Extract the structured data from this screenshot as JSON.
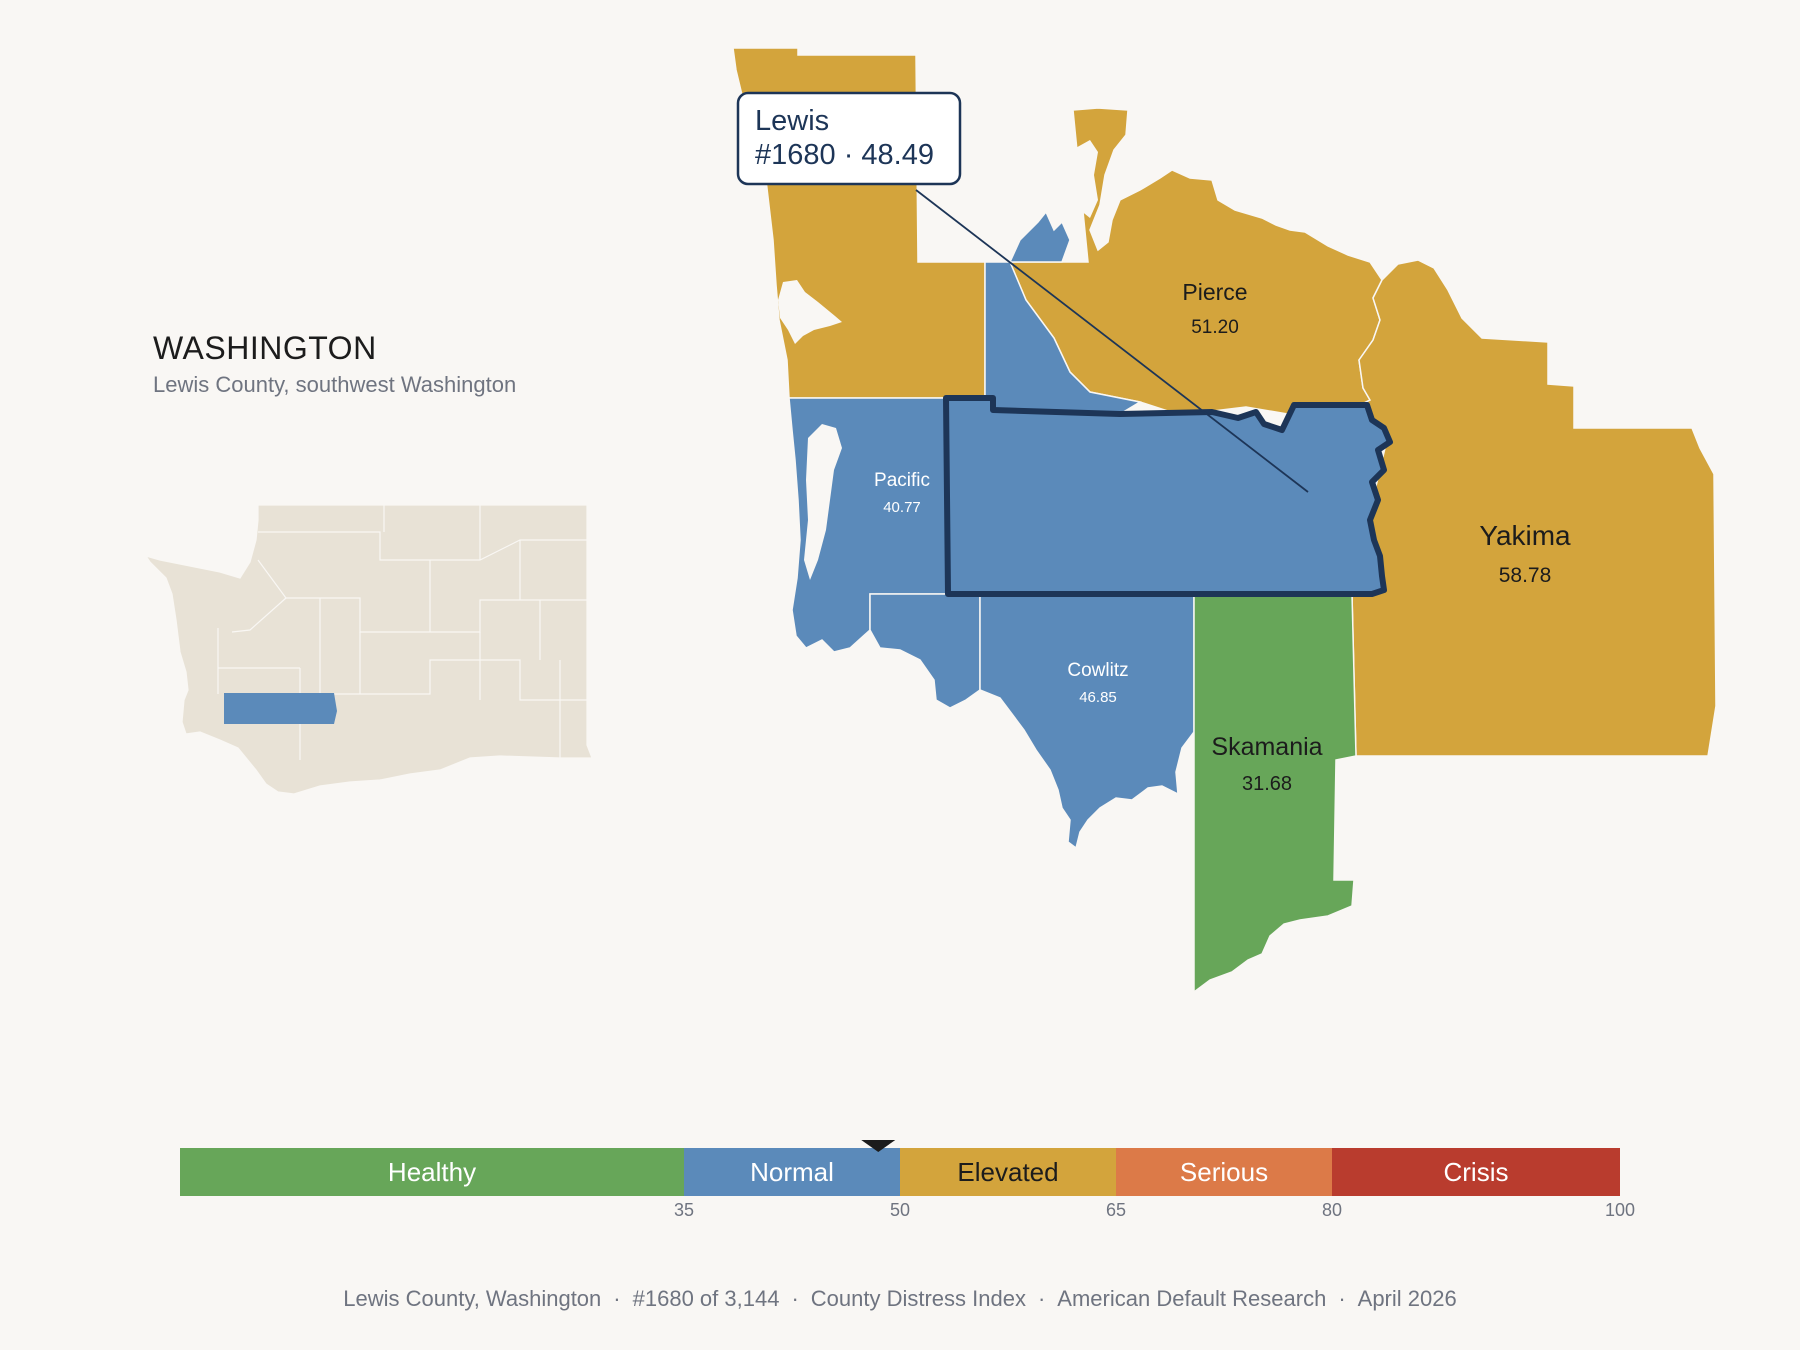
{
  "state": {
    "name": "WASHINGTON",
    "subtitle": "Lewis County, southwest Washington"
  },
  "callout": {
    "name": "Lewis",
    "detail": "#1680 · 48.49"
  },
  "counties": [
    {
      "id": "lewis",
      "name": "Lewis",
      "score": "48.49",
      "category": "Normal",
      "selected": true
    },
    {
      "id": "pierce",
      "name": "Pierce",
      "score": "51.20",
      "category": "Elevated"
    },
    {
      "id": "yakima",
      "name": "Yakima",
      "score": "58.78",
      "category": "Elevated"
    },
    {
      "id": "pacific",
      "name": "Pacific",
      "score": "40.77",
      "category": "Normal"
    },
    {
      "id": "cowlitz",
      "name": "Cowlitz",
      "score": "46.85",
      "category": "Normal"
    },
    {
      "id": "skamania",
      "name": "Skamania",
      "score": "31.68",
      "category": "Healthy"
    },
    {
      "id": "thurston",
      "name": "",
      "score": "",
      "category": "Normal"
    },
    {
      "id": "wahkiakum",
      "name": "",
      "score": "",
      "category": "Normal"
    },
    {
      "id": "grays-harbor",
      "name": "",
      "score": "",
      "category": "Elevated"
    },
    {
      "id": "mason",
      "name": "",
      "score": "",
      "category": "Elevated"
    }
  ],
  "legend": {
    "bands": [
      {
        "label": "Healthy",
        "from": 0,
        "to": 35,
        "color": "#67a659"
      },
      {
        "label": "Normal",
        "from": 35,
        "to": 50,
        "color": "#5b8aba"
      },
      {
        "label": "Elevated",
        "from": 50,
        "to": 65,
        "color": "#d3a43c"
      },
      {
        "label": "Serious",
        "from": 65,
        "to": 80,
        "color": "#dc7a48"
      },
      {
        "label": "Crisis",
        "from": 80,
        "to": 100,
        "color": "#b93c2e"
      }
    ],
    "ticks": [
      "35",
      "50",
      "65",
      "80",
      "100"
    ],
    "marker_value": 48.49
  },
  "footer": {
    "county": "Lewis County, Washington",
    "rank": "#1680 of 3,144",
    "index": "County Distress Index",
    "org": "American Default Research",
    "date": "April 2026"
  },
  "colors": {
    "background": "#f9f7f4",
    "healthy": "#67a659",
    "normal": "#5b8aba",
    "elevated": "#d3a43c",
    "inset_land": "#e8e2d6",
    "highlight_outline": "#1d3557"
  }
}
